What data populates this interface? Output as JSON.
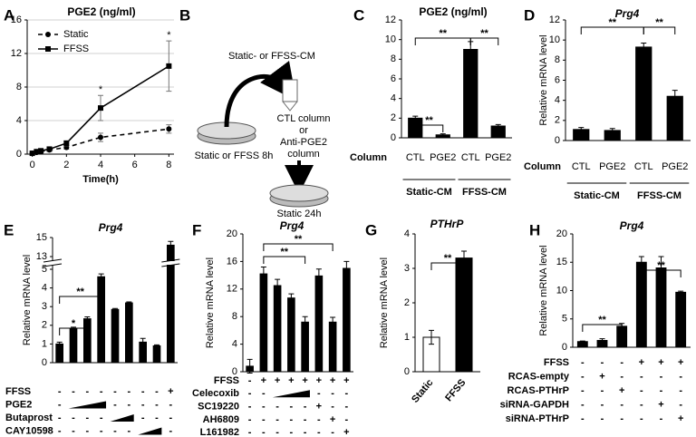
{
  "chart_data": [
    {
      "panel": "A",
      "type": "line",
      "title": "PGE2 (ng/ml)",
      "x_label": "Time(h)",
      "x": [
        0,
        0.25,
        0.5,
        1,
        2,
        4,
        8
      ],
      "series": [
        {
          "name": "Static",
          "color": "#000000",
          "dashed": true,
          "marker": "circle",
          "values": [
            0.1,
            0.2,
            0.3,
            0.5,
            0.8,
            2.0,
            3.0
          ],
          "errors": [
            0.05,
            0.05,
            0.1,
            0.1,
            0.2,
            0.5,
            0.5
          ]
        },
        {
          "name": "FFSS",
          "color": "#000000",
          "dashed": false,
          "marker": "square",
          "values": [
            0.1,
            0.3,
            0.4,
            0.6,
            1.3,
            5.5,
            10.5
          ],
          "errors": [
            0.05,
            0.1,
            0.1,
            0.15,
            0.3,
            1.5,
            3.0
          ]
        }
      ],
      "xlim": [
        -0.3,
        8.3
      ],
      "ylim": [
        0,
        16
      ],
      "xticks": [
        0,
        2,
        4,
        6,
        8
      ],
      "yticks": [
        0,
        4,
        8,
        12,
        16
      ],
      "grid": true,
      "legend": "upper left",
      "annotations": [
        {
          "text": "*",
          "x": 4
        },
        {
          "text": "*",
          "x": 8
        }
      ]
    },
    {
      "panel": "C",
      "type": "bar",
      "title": "PGE2 (ng/ml)",
      "title_italic": false,
      "x_row_label": "Column",
      "categories": [
        "CTL",
        "PGE2",
        "CTL",
        "PGE2"
      ],
      "groups": [
        "Static-CM",
        "FFSS-CM"
      ],
      "values": [
        2.0,
        0.3,
        9.0,
        1.2
      ],
      "errors": [
        0.2,
        0.1,
        0.8,
        0.15
      ],
      "color": "#000000",
      "ylim": [
        0,
        12
      ],
      "yticks": [
        0,
        2,
        4,
        6,
        8,
        10,
        12
      ],
      "significance": [
        "**",
        "**",
        "**"
      ]
    },
    {
      "panel": "D",
      "type": "bar",
      "title": "Prg4",
      "title_italic": true,
      "y_label": "Relative mRNA level",
      "x_row_label": "Column",
      "categories": [
        "CTL",
        "PGE2",
        "CTL",
        "PGE2"
      ],
      "groups": [
        "Static-CM",
        "FFSS-CM"
      ],
      "values": [
        1.1,
        1.0,
        9.3,
        4.4
      ],
      "errors": [
        0.2,
        0.2,
        0.4,
        0.6
      ],
      "color": "#000000",
      "ylim": [
        0,
        12
      ],
      "yticks": [
        0,
        2,
        4,
        6,
        8,
        10,
        12
      ],
      "significance": [
        "**",
        "**"
      ]
    },
    {
      "panel": "E",
      "type": "bar",
      "title": "Prg4",
      "title_italic": true,
      "y_label": "Relative mRNA level",
      "values": [
        1.0,
        1.8,
        2.35,
        4.6,
        2.85,
        3.2,
        1.1,
        0.9,
        14.2
      ],
      "errors": [
        0.1,
        0.1,
        0.1,
        0.15,
        0.05,
        0.05,
        0.2,
        0.05,
        0.4
      ],
      "color": "#000000",
      "ylim": [
        0,
        15
      ],
      "axis_break": [
        5,
        13
      ],
      "yticks": [
        0,
        1,
        2,
        3,
        4,
        5,
        13,
        15
      ],
      "significance": [
        "*",
        "**"
      ],
      "conditions": [
        {
          "label": "FFSS",
          "signs": [
            "-",
            "-",
            "-",
            "-",
            "-",
            "-",
            "-",
            "-",
            "+"
          ]
        },
        {
          "label": "PGE2",
          "signs": [
            "-",
            null,
            null,
            null,
            "-",
            "-",
            "-",
            "-",
            "-"
          ],
          "ramp": [
            1,
            3
          ]
        },
        {
          "label": "Butaprost",
          "signs": [
            "-",
            "-",
            "-",
            "-",
            null,
            null,
            "-",
            "-",
            "-"
          ],
          "ramp": [
            4,
            5
          ]
        },
        {
          "label": "CAY10598",
          "signs": [
            "-",
            "-",
            "-",
            "-",
            "-",
            "-",
            null,
            null,
            "-"
          ],
          "ramp": [
            6,
            7
          ]
        }
      ]
    },
    {
      "panel": "F",
      "type": "bar",
      "title": "Prg4",
      "title_italic": true,
      "y_label": "Relative mRNA level",
      "values": [
        0.8,
        14.2,
        12.5,
        10.7,
        7.2,
        13.9,
        7.2,
        15.0
      ],
      "errors": [
        1.0,
        1.0,
        0.9,
        0.6,
        0.8,
        1.0,
        0.7,
        1.0
      ],
      "color": "#000000",
      "ylim": [
        0,
        20
      ],
      "yticks": [
        0,
        4,
        8,
        12,
        16,
        20
      ],
      "significance": [
        "**",
        "**"
      ],
      "conditions": [
        {
          "label": "FFSS",
          "signs": [
            "-",
            "+",
            "+",
            "+",
            "+",
            "+",
            "+",
            "+"
          ]
        },
        {
          "label": "Celecoxib",
          "signs": [
            "-",
            "-",
            null,
            null,
            null,
            "-",
            "-",
            "-"
          ],
          "ramp": [
            2,
            4
          ]
        },
        {
          "label": "SC19220",
          "signs": [
            "-",
            "-",
            "-",
            "-",
            "-",
            "+",
            "-",
            "-"
          ]
        },
        {
          "label": "AH6809",
          "signs": [
            "-",
            "-",
            "-",
            "-",
            "-",
            "-",
            "+",
            "-"
          ]
        },
        {
          "label": "L161982",
          "signs": [
            "-",
            "-",
            "-",
            "-",
            "-",
            "-",
            "-",
            "+"
          ]
        }
      ]
    },
    {
      "panel": "G",
      "type": "bar",
      "title": "PTHrP",
      "title_italic": true,
      "y_label": "Relative mRNA level",
      "categories": [
        "Static",
        "FFSS"
      ],
      "values": [
        1.0,
        3.3
      ],
      "errors": [
        0.2,
        0.2
      ],
      "colors": [
        "#ffffff",
        "#000000"
      ],
      "ylim": [
        0,
        4
      ],
      "yticks": [
        0,
        1,
        2,
        3,
        4
      ],
      "significance": [
        "**"
      ]
    },
    {
      "panel": "H",
      "type": "bar",
      "title": "Prg4",
      "title_italic": true,
      "y_label": "Relative mRNA level",
      "values": [
        1.0,
        1.2,
        3.7,
        15.0,
        14.0,
        9.7
      ],
      "errors": [
        0.1,
        0.3,
        0.5,
        1.0,
        2.0,
        0.2
      ],
      "color": "#000000",
      "ylim": [
        0,
        20
      ],
      "yticks": [
        0,
        5,
        10,
        15,
        20
      ],
      "significance": [
        "**",
        "**"
      ],
      "conditions": [
        {
          "label": "FFSS",
          "signs": [
            "-",
            "-",
            "-",
            "+",
            "+",
            "+"
          ]
        },
        {
          "label": "RCAS-empty",
          "signs": [
            "-",
            "+",
            "-",
            "-",
            "-",
            "-"
          ]
        },
        {
          "label": "RCAS-PTHrP",
          "signs": [
            "-",
            "-",
            "+",
            "-",
            "-",
            "-"
          ]
        },
        {
          "label": "siRNA-GAPDH",
          "signs": [
            "-",
            "-",
            "-",
            "-",
            "+",
            "-"
          ]
        },
        {
          "label": "siRNA-PTHrP",
          "signs": [
            "-",
            "-",
            "-",
            "-",
            "-",
            "+"
          ]
        }
      ]
    }
  ],
  "diagram": {
    "panel": "B",
    "labels": [
      "Static- or FFSS-CM",
      "Static or FFSS 8h",
      "CTL column",
      "or",
      "Anti-PGE2",
      "column",
      "Static 24h"
    ]
  }
}
